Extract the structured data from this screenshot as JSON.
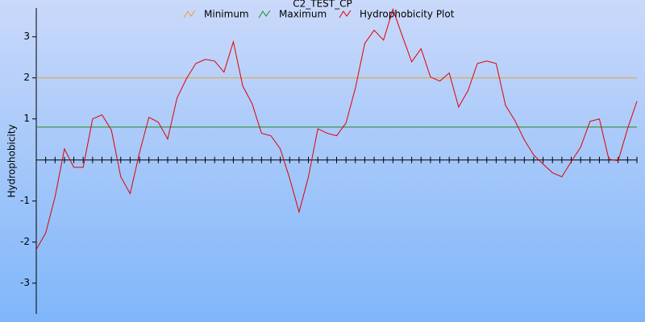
{
  "chart_data": {
    "type": "line",
    "title": "C2_TEST_CP",
    "y_label": "Hydrophobicity",
    "categories": [
      null,
      null,
      null,
      null,
      null,
      null,
      null,
      null,
      null,
      null,
      null,
      null,
      null,
      null,
      null,
      null,
      null,
      null,
      null,
      null,
      null,
      null,
      null,
      null,
      null,
      null,
      null,
      null,
      null,
      null,
      null,
      null,
      null,
      null,
      null,
      null,
      null,
      null,
      null,
      null,
      null,
      null,
      null,
      null,
      null,
      null,
      null,
      null,
      null,
      null,
      null,
      null,
      null,
      null,
      null,
      null,
      null,
      null,
      null,
      null,
      null,
      null,
      null,
      null,
      null
    ],
    "ylim": [
      -3.75,
      3.7
    ],
    "yticks": [
      -3,
      -2,
      -1,
      1,
      2,
      3
    ],
    "series": [
      {
        "name": "Minimum",
        "color": "#e8a030",
        "value": 2
      },
      {
        "name": "Maximum",
        "color": "#208a20",
        "value": 0.8
      },
      {
        "name": "Hydrophobicity Plot",
        "color": "#e00000",
        "values": [
          -2.18,
          -1.78,
          -0.9,
          0.27,
          -0.18,
          -0.18,
          1.0,
          1.1,
          0.73,
          -0.41,
          -0.82,
          0.18,
          1.04,
          0.92,
          0.51,
          1.51,
          1.98,
          2.35,
          2.45,
          2.41,
          2.14,
          2.88,
          1.8,
          1.37,
          0.65,
          0.59,
          0.27,
          -0.45,
          -1.27,
          -0.41,
          0.76,
          0.65,
          0.59,
          0.9,
          1.75,
          2.84,
          3.16,
          2.92,
          3.67,
          3.02,
          2.39,
          2.71,
          2.02,
          1.92,
          2.12,
          1.29,
          1.69,
          2.35,
          2.41,
          2.35,
          1.33,
          0.96,
          0.49,
          0.12,
          -0.1,
          -0.31,
          -0.41,
          -0.04,
          0.31,
          0.94,
          1.0,
          0.02,
          -0.02,
          0.76,
          1.43
        ]
      }
    ]
  }
}
